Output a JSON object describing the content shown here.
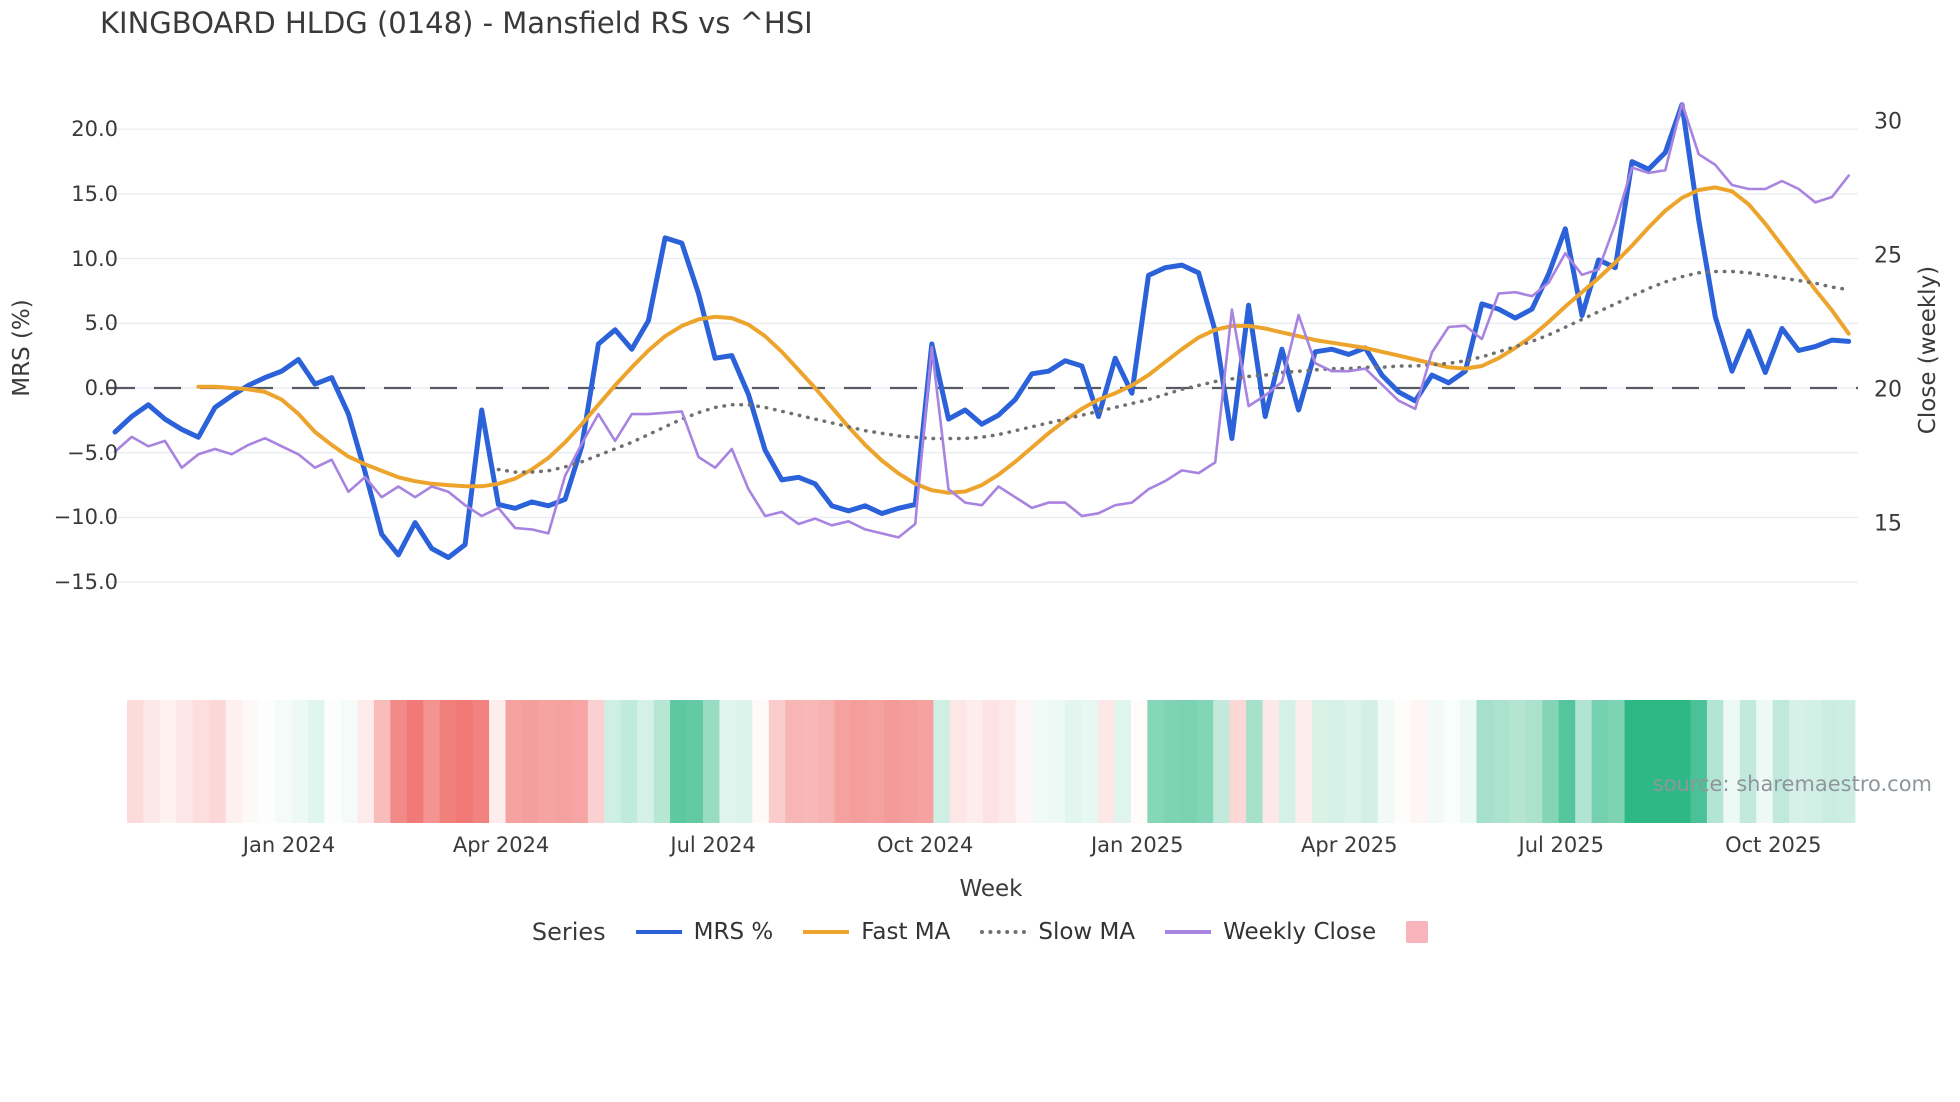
{
  "title": "KINGBOARD HLDG (0148) - Mansfield RS vs ^HSI",
  "source_note": "source: sharemaestro.com",
  "chart_data": {
    "type": "line",
    "title": "KINGBOARD HLDG (0148) - Mansfield RS vs ^HSI",
    "xlabel": "Week",
    "grid": true,
    "x_ticks": [
      {
        "label": "Jan 2024",
        "week": 10.44
      },
      {
        "label": "Apr 2024",
        "week": 23.16
      },
      {
        "label": "Jul 2024",
        "week": 35.88
      },
      {
        "label": "Oct 2024",
        "week": 48.6
      },
      {
        "label": "Jan 2025",
        "week": 61.32
      },
      {
        "label": "Apr 2025",
        "week": 74.04
      },
      {
        "label": "Jul 2025",
        "week": 86.76
      },
      {
        "label": "Oct 2025",
        "week": 99.48
      }
    ],
    "y_left": {
      "label": "MRS (%)",
      "ticks": [
        20.0,
        15.0,
        10.0,
        5.0,
        0.0,
        -5.0,
        -10.0,
        -15.0
      ],
      "range": [
        -18.5,
        23.5
      ]
    },
    "y_right": {
      "label": "Close (weekly)",
      "ticks": [
        30,
        25,
        20,
        15
      ],
      "range": [
        13.0,
        31.0
      ]
    },
    "zero_line": {
      "value": 0,
      "color": "#555a63",
      "style": "dashed"
    },
    "weeks_total": 105,
    "series": [
      {
        "name": "MRS %",
        "axis": "left",
        "color": "#2b62d9",
        "style": "solid",
        "width": 5,
        "start_week": 0,
        "values": [
          -3.4,
          -2.2,
          -1.3,
          -2.4,
          -3.2,
          -3.8,
          -1.5,
          -0.6,
          0.2,
          0.8,
          1.3,
          2.2,
          0.3,
          0.8,
          -2.0,
          -6.5,
          -11.3,
          -12.9,
          -10.4,
          -12.4,
          -13.1,
          -12.1,
          -1.7,
          -9.0,
          -9.3,
          -8.8,
          -9.1,
          -8.6,
          -4.5,
          3.4,
          4.5,
          3.0,
          5.2,
          11.6,
          11.2,
          7.3,
          2.3,
          2.5,
          -0.5,
          -4.8,
          -7.1,
          -6.9,
          -7.4,
          -9.1,
          -9.5,
          -9.1,
          -9.7,
          -9.3,
          -9.0,
          3.4,
          -2.4,
          -1.7,
          -2.8,
          -2.1,
          -0.9,
          1.1,
          1.3,
          2.1,
          1.7,
          -2.2,
          2.3,
          -0.4,
          8.7,
          9.3,
          9.5,
          8.9,
          4.4,
          -3.9,
          6.4,
          -2.2,
          3.0,
          -1.7,
          2.8,
          3.0,
          2.6,
          3.1,
          1.0,
          -0.3,
          -1.0,
          1.0,
          0.4,
          1.3,
          6.5,
          6.1,
          5.4,
          6.1,
          8.8,
          12.3,
          5.6,
          9.9,
          9.3,
          17.5,
          16.9,
          18.2,
          21.9,
          13.0,
          5.5,
          1.3,
          4.4,
          1.2,
          4.6,
          2.9,
          3.2,
          3.7,
          3.6
        ]
      },
      {
        "name": "Fast MA",
        "axis": "left",
        "color": "#eda42c",
        "style": "solid",
        "width": 4,
        "start_week": 5,
        "values": [
          0.1,
          0.1,
          0.0,
          -0.1,
          -0.3,
          -0.9,
          -2.0,
          -3.4,
          -4.4,
          -5.3,
          -5.9,
          -6.4,
          -6.9,
          -7.2,
          -7.4,
          -7.5,
          -7.6,
          -7.6,
          -7.4,
          -7.0,
          -6.3,
          -5.4,
          -4.2,
          -2.8,
          -1.3,
          0.2,
          1.6,
          2.9,
          4.0,
          4.8,
          5.3,
          5.5,
          5.4,
          4.9,
          4.0,
          2.8,
          1.4,
          0.0,
          -1.5,
          -3.0,
          -4.4,
          -5.6,
          -6.6,
          -7.4,
          -7.9,
          -8.1,
          -8.0,
          -7.5,
          -6.7,
          -5.7,
          -4.6,
          -3.5,
          -2.5,
          -1.6,
          -0.9,
          -0.4,
          0.2,
          1.0,
          2.0,
          3.0,
          3.9,
          4.5,
          4.8,
          4.8,
          4.6,
          4.3,
          4.0,
          3.7,
          3.5,
          3.3,
          3.1,
          2.8,
          2.5,
          2.2,
          1.9,
          1.6,
          1.5,
          1.7,
          2.3,
          3.1,
          4.0,
          5.1,
          6.3,
          7.4,
          8.5,
          9.7,
          11.0,
          12.4,
          13.7,
          14.7,
          15.3,
          15.5,
          15.2,
          14.2,
          12.7,
          11.0,
          9.3,
          7.6,
          6.0,
          4.2
        ]
      },
      {
        "name": "Slow MA",
        "axis": "left",
        "color": "#707070",
        "style": "dotted",
        "width": 3.5,
        "start_week": 23,
        "values": [
          -6.3,
          -6.5,
          -6.5,
          -6.4,
          -6.1,
          -5.7,
          -5.2,
          -4.7,
          -4.2,
          -3.6,
          -3.0,
          -2.4,
          -1.9,
          -1.5,
          -1.3,
          -1.3,
          -1.5,
          -1.8,
          -2.1,
          -2.4,
          -2.7,
          -3.0,
          -3.3,
          -3.5,
          -3.7,
          -3.8,
          -3.9,
          -3.9,
          -3.9,
          -3.8,
          -3.6,
          -3.3,
          -3.0,
          -2.7,
          -2.4,
          -2.1,
          -1.8,
          -1.5,
          -1.2,
          -0.9,
          -0.5,
          -0.1,
          0.2,
          0.5,
          0.7,
          0.9,
          1.0,
          1.2,
          1.3,
          1.4,
          1.5,
          1.5,
          1.6,
          1.6,
          1.7,
          1.7,
          1.8,
          1.9,
          2.1,
          2.4,
          2.8,
          3.2,
          3.6,
          4.1,
          4.7,
          5.3,
          5.9,
          6.5,
          7.1,
          7.7,
          8.2,
          8.6,
          8.9,
          9.0,
          9.0,
          8.9,
          8.7,
          8.5,
          8.3,
          8.1,
          7.8,
          7.6
        ]
      },
      {
        "name": "Weekly Close",
        "axis": "right",
        "color": "#a884e0",
        "style": "solid",
        "width": 2.6,
        "start_week": 0,
        "values": [
          17.7,
          18.25,
          17.9,
          18.1,
          17.1,
          17.6,
          17.8,
          17.6,
          17.95,
          18.2,
          17.9,
          17.6,
          17.1,
          17.4,
          16.2,
          16.75,
          16.0,
          16.4,
          16.0,
          16.4,
          16.2,
          15.7,
          15.3,
          15.6,
          14.85,
          14.8,
          14.65,
          16.8,
          18.0,
          19.1,
          18.1,
          19.1,
          19.1,
          19.15,
          19.2,
          17.5,
          17.1,
          17.8,
          16.3,
          15.3,
          15.45,
          15.0,
          15.2,
          14.95,
          15.1,
          14.8,
          14.65,
          14.5,
          15.0,
          21.6,
          16.3,
          15.8,
          15.7,
          16.4,
          16.0,
          15.6,
          15.8,
          15.8,
          15.3,
          15.4,
          15.7,
          15.8,
          16.3,
          16.6,
          17.0,
          16.9,
          17.3,
          23.0,
          19.4,
          19.8,
          20.3,
          22.8,
          21.0,
          20.7,
          20.7,
          20.8,
          20.2,
          19.6,
          19.3,
          21.4,
          22.35,
          22.4,
          21.9,
          23.6,
          23.65,
          23.5,
          24.0,
          25.1,
          24.3,
          24.5,
          26.2,
          28.3,
          28.1,
          28.2,
          30.7,
          28.8,
          28.4,
          27.65,
          27.5,
          27.5,
          27.8,
          27.5,
          27.0,
          27.2,
          28.0
        ]
      }
    ],
    "heatmap": {
      "derived_from": "MRS %",
      "negative_color": "#ee6461",
      "positive_color": "#2eb886",
      "neutral_color": "#ffffff",
      "scale_max": 15
    },
    "legend": {
      "title": "Series",
      "items": [
        {
          "label": "MRS %",
          "type": "line",
          "color": "#2b62d9"
        },
        {
          "label": "Fast MA",
          "type": "line",
          "color": "#eda42c"
        },
        {
          "label": "Slow MA",
          "type": "dotted",
          "color": "#707070"
        },
        {
          "label": "Weekly Close",
          "type": "line",
          "color": "#a884e0"
        },
        {
          "label": "",
          "type": "square",
          "color": "#f8b4ba"
        }
      ]
    }
  }
}
